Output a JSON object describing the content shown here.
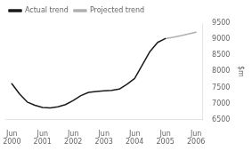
{
  "chart_data": {
    "type": "line",
    "ylabel": "$m",
    "series": [
      {
        "name": "Actual trend",
        "color": "#1a1a1a",
        "x": [
          0,
          0.25,
          0.5,
          0.75,
          1.0,
          1.25,
          1.5,
          1.75,
          2.0,
          2.25,
          2.5,
          2.75,
          3.0,
          3.25,
          3.5,
          3.75,
          4.0,
          4.25,
          4.5,
          4.75,
          5.0
        ],
        "values": [
          7620,
          7300,
          7050,
          6950,
          6880,
          6870,
          6900,
          6970,
          7100,
          7250,
          7350,
          7380,
          7400,
          7410,
          7450,
          7600,
          7780,
          8200,
          8620,
          8900,
          9020
        ]
      },
      {
        "name": "Projected trend",
        "color": "#b0b0b0",
        "x": [
          5.0,
          5.25,
          5.5,
          5.75,
          6.0
        ],
        "values": [
          9020,
          9060,
          9110,
          9160,
          9220
        ]
      }
    ],
    "xlim": [
      -0.2,
      6.2
    ],
    "xticks": [
      {
        "value": 0,
        "label": "Jun\n2000"
      },
      {
        "value": 1,
        "label": "Jun\n2001"
      },
      {
        "value": 2,
        "label": "Jun\n2002"
      },
      {
        "value": 3,
        "label": "Jun\n2003"
      },
      {
        "value": 4,
        "label": "Jun\n2004"
      },
      {
        "value": 5,
        "label": "Jun\n2005"
      },
      {
        "value": 6,
        "label": "Jun\n2006"
      }
    ],
    "ylim": [
      6500,
      9500
    ],
    "yticks": [
      6500,
      7000,
      7500,
      8000,
      8500,
      9000,
      9500
    ],
    "grid": false,
    "legend": "upper left"
  }
}
